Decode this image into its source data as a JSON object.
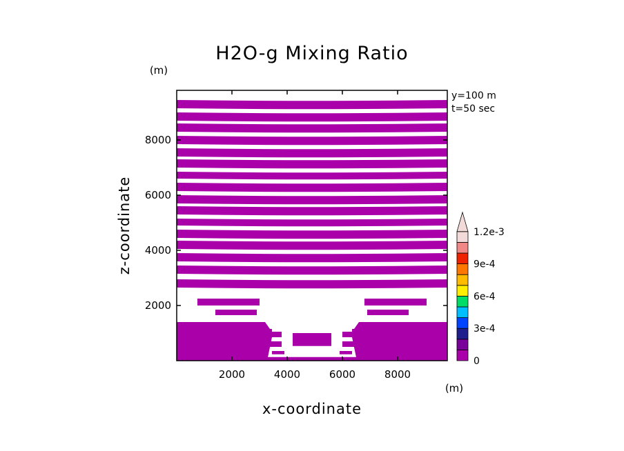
{
  "chart_data": {
    "type": "heatmap",
    "title": "H2O-g Mixing Ratio",
    "xlabel": "x-coordinate",
    "ylabel": "z-coordinate",
    "x_unit": "(m)",
    "y_unit": "(m)",
    "annotations": [
      "y=100 m",
      "t=50 sec"
    ],
    "xlim": [
      0,
      9800
    ],
    "ylim": [
      0,
      9800
    ],
    "x_ticks": [
      {
        "value": 2000,
        "label": "2000"
      },
      {
        "value": 4000,
        "label": "4000"
      },
      {
        "value": 6000,
        "label": "6000"
      },
      {
        "value": 8000,
        "label": "8000"
      }
    ],
    "y_ticks": [
      {
        "value": 2000,
        "label": "2000"
      },
      {
        "value": 4000,
        "label": "4000"
      },
      {
        "value": 6000,
        "label": "6000"
      },
      {
        "value": 8000,
        "label": "8000"
      }
    ],
    "fill_color": "#aa00aa",
    "stripes": [
      {
        "z0": 230,
        "z1": 350,
        "xl": 3450,
        "xr": 3900
      },
      {
        "z0": 500,
        "z1": 700,
        "xl": 3250,
        "xr": 3800
      },
      {
        "z0": 850,
        "z1": 1050,
        "xl": 3300,
        "xr": 3800
      },
      {
        "z0": 530,
        "z1": 1000,
        "xl": 4200,
        "xr": 5600
      },
      {
        "z0": 1650,
        "z1": 1850,
        "xl": 1400,
        "xr": 2900
      },
      {
        "z0": 2000,
        "z1": 2250,
        "xl": 750,
        "xr": 3000
      },
      {
        "z0": 2650,
        "z1": 2950,
        "xl": 0,
        "xr": 9800
      },
      {
        "z0": 3150,
        "z1": 3450,
        "xl": 0,
        "xr": 9800
      },
      {
        "z0": 3600,
        "z1": 3900,
        "xl": 0,
        "xr": 9800
      },
      {
        "z0": 4050,
        "z1": 4350,
        "xl": 0,
        "xr": 9800
      },
      {
        "z0": 4450,
        "z1": 4750,
        "xl": 0,
        "xr": 9800
      },
      {
        "z0": 4900,
        "z1": 5150,
        "xl": 0,
        "xr": 9800
      },
      {
        "z0": 5300,
        "z1": 5600,
        "xl": 0,
        "xr": 9800
      },
      {
        "z0": 5700,
        "z1": 6000,
        "xl": 0,
        "xr": 9800
      },
      {
        "z0": 6150,
        "z1": 6450,
        "xl": 0,
        "xr": 9800
      },
      {
        "z0": 6600,
        "z1": 6850,
        "xl": 0,
        "xr": 9800
      },
      {
        "z0": 7000,
        "z1": 7300,
        "xl": 0,
        "xr": 9800
      },
      {
        "z0": 7400,
        "z1": 7700,
        "xl": 0,
        "xr": 9800
      },
      {
        "z0": 7850,
        "z1": 8150,
        "xl": 0,
        "xr": 9800
      },
      {
        "z0": 8300,
        "z1": 8600,
        "xl": 0,
        "xr": 9800
      },
      {
        "z0": 8700,
        "z1": 9000,
        "xl": 0,
        "xr": 9800
      },
      {
        "z0": 9150,
        "z1": 9450,
        "xl": 0,
        "xr": 9800
      }
    ],
    "mirror_stripes": [
      {
        "z0": 230,
        "z1": 350,
        "xl": 5900,
        "xr": 6350
      },
      {
        "z0": 500,
        "z1": 700,
        "xl": 6000,
        "xr": 6550
      },
      {
        "z0": 850,
        "z1": 1050,
        "xl": 6000,
        "xr": 6500
      },
      {
        "z0": 1650,
        "z1": 1850,
        "xl": 6900,
        "xr": 8400
      },
      {
        "z0": 2000,
        "z1": 2250,
        "xl": 6800,
        "xr": 9050
      }
    ],
    "bottom_blocks": [
      {
        "z0": 0,
        "z1": 1400,
        "xl": 0,
        "xr": 3200,
        "stepped_right": true
      },
      {
        "z0": 0,
        "z1": 1400,
        "xl": 6600,
        "xr": 9800,
        "stepped_left": true
      },
      {
        "z0": 0,
        "z1": 130,
        "xl": 3200,
        "xr": 6600
      }
    ],
    "colorbar": {
      "colors": [
        "#aa00aa",
        "#7a009a",
        "#1e1e8c",
        "#0044ff",
        "#00bfff",
        "#00dd66",
        "#ffee00",
        "#ffbb00",
        "#ff7700",
        "#ee2200",
        "#f08888",
        "#f2dad8"
      ],
      "labels": [
        "0",
        "3e-4",
        "6e-4",
        "9e-4",
        "1.2e-3"
      ],
      "label_steps": [
        0,
        3,
        6,
        9,
        12
      ]
    }
  }
}
